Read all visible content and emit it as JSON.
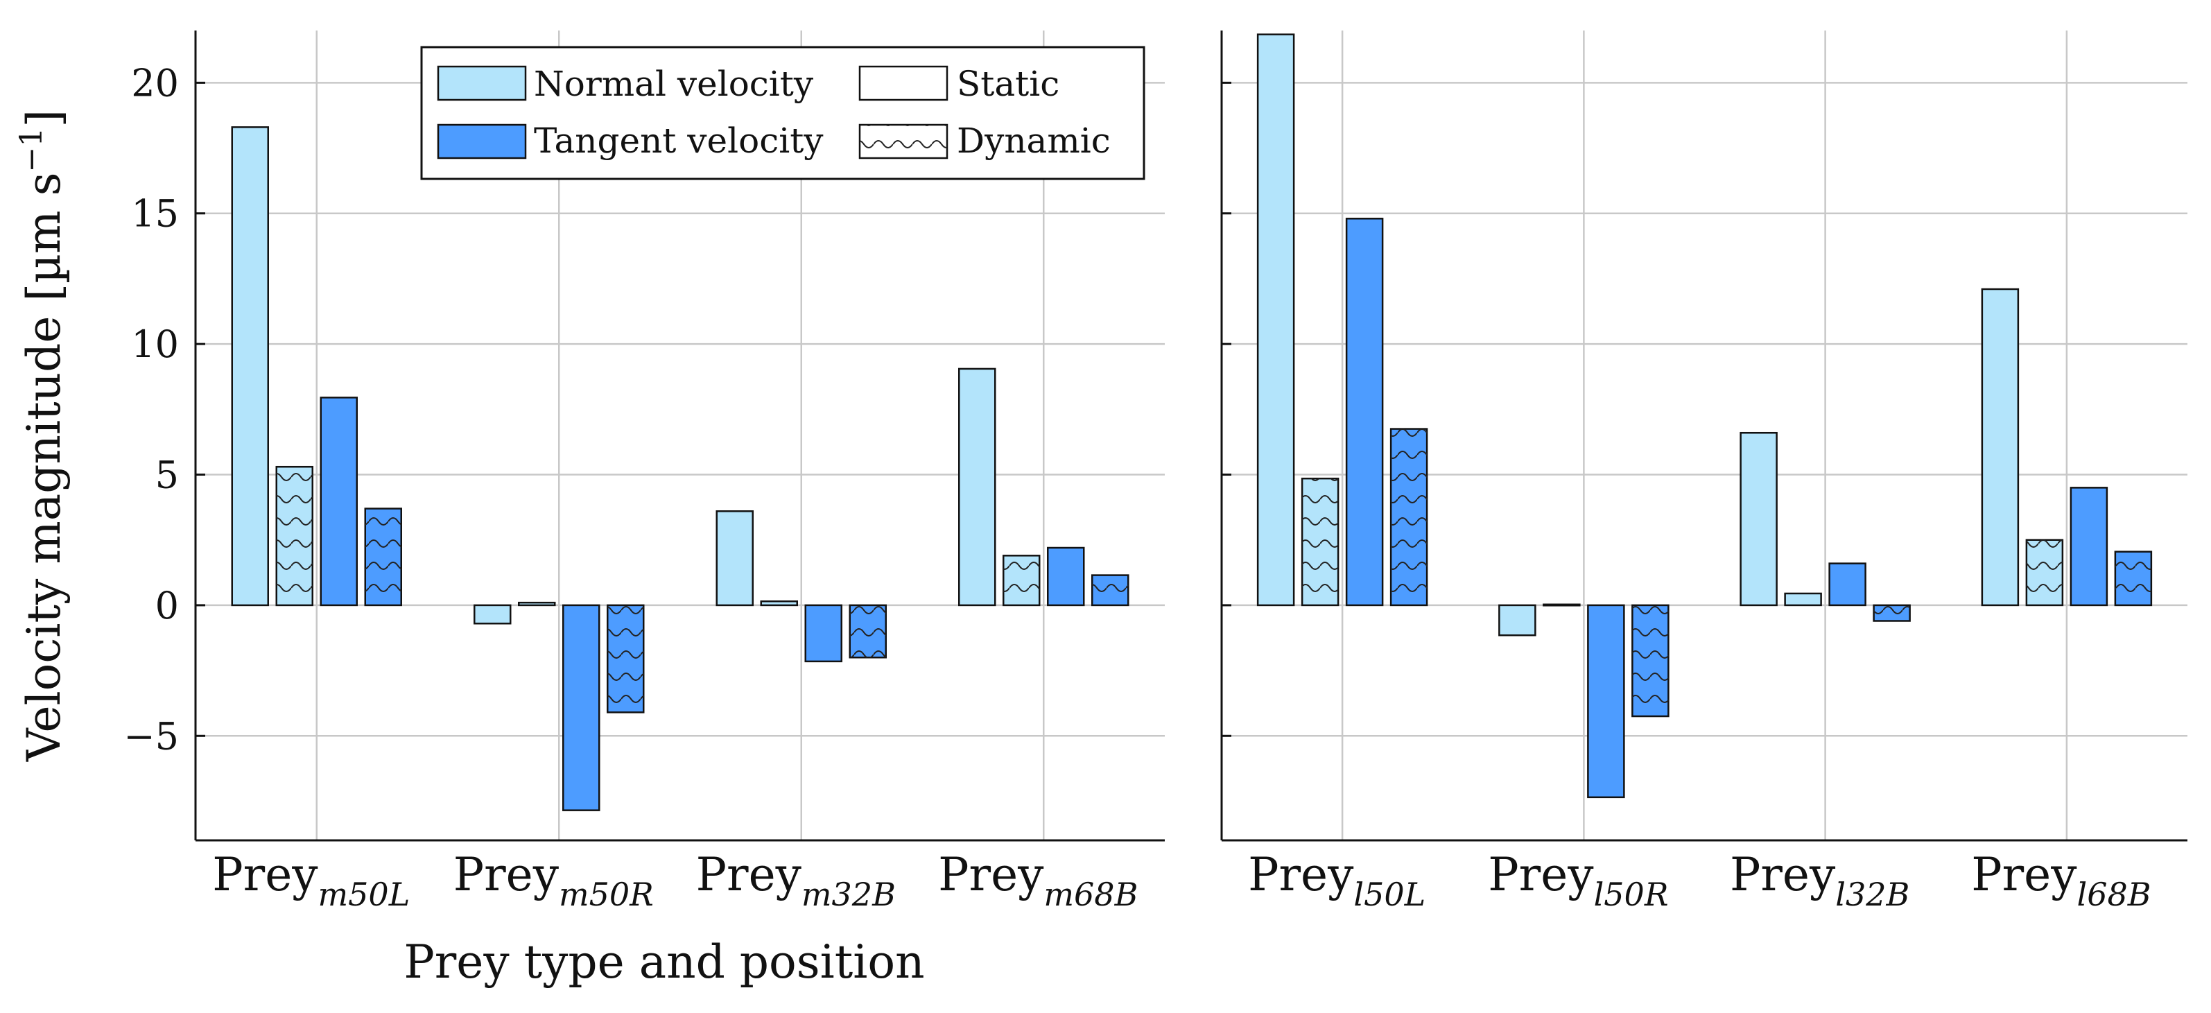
{
  "chart_data": {
    "type": "bar",
    "ylabel_main": "Velocity magnitude [µm s",
    "ylabel_exp": "−1",
    "ylabel_close": "]",
    "xlabel": "Prey type and position",
    "ylim": [
      -9,
      22
    ],
    "yticks": [
      -5,
      0,
      5,
      10,
      15,
      20
    ],
    "ytick_labels": [
      "−5",
      "0",
      "5",
      "10",
      "15",
      "20"
    ],
    "grid": true,
    "legend_position": "top-center",
    "legend": {
      "normal": "Normal velocity",
      "tangent": "Tangent velocity",
      "static": "Static",
      "dynamic": "Dynamic"
    },
    "colors": {
      "normal": "#b3e4fb",
      "tangent": "#4d9cff",
      "edge": "#111111",
      "grid": "#c8c8c8"
    },
    "series": [
      {
        "name": "Normal velocity",
        "condition": "Static"
      },
      {
        "name": "Normal velocity",
        "condition": "Dynamic"
      },
      {
        "name": "Tangent velocity",
        "condition": "Static"
      },
      {
        "name": "Tangent velocity",
        "condition": "Dynamic"
      }
    ],
    "panels": [
      {
        "categories": [
          {
            "base": "Prey",
            "sub": "m50L",
            "values": [
              18.3,
              5.3,
              7.95,
              3.7
            ]
          },
          {
            "base": "Prey",
            "sub": "m50R",
            "values": [
              -0.7,
              0.1,
              -7.85,
              -4.1
            ]
          },
          {
            "base": "Prey",
            "sub": "m32B",
            "values": [
              3.6,
              0.15,
              -2.15,
              -2.0
            ]
          },
          {
            "base": "Prey",
            "sub": "m68B",
            "values": [
              9.05,
              1.9,
              2.2,
              1.15
            ]
          }
        ]
      },
      {
        "categories": [
          {
            "base": "Prey",
            "sub": "l50L",
            "values": [
              21.85,
              4.85,
              14.8,
              6.75
            ]
          },
          {
            "base": "Prey",
            "sub": "l50R",
            "values": [
              -1.15,
              0.03,
              -7.35,
              -4.25
            ]
          },
          {
            "base": "Prey",
            "sub": "l32B",
            "values": [
              6.6,
              0.45,
              1.6,
              -0.6
            ]
          },
          {
            "base": "Prey",
            "sub": "l68B",
            "values": [
              12.1,
              2.5,
              4.5,
              2.05
            ]
          }
        ]
      }
    ]
  }
}
